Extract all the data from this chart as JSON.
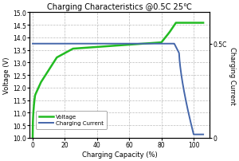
{
  "title": "Charging Characteristics @0.5C 25℃",
  "xlabel": "Charging Capacity (%)",
  "ylabel_left": "Voltage (V)",
  "ylabel_right": "Charging Current",
  "xlim": [
    -2,
    110
  ],
  "ylim_left": [
    10.0,
    15.0
  ],
  "ylim_right": [
    0,
    0.6667
  ],
  "xticks": [
    0,
    20,
    40,
    60,
    80,
    100
  ],
  "yticks_left": [
    10.0,
    10.5,
    11.0,
    11.5,
    12.0,
    12.5,
    13.0,
    13.5,
    14.0,
    14.5,
    15.0
  ],
  "right_ytick_pos": [
    0.5
  ],
  "right_ytick_labels": [
    "0.5C"
  ],
  "right_ytick_0_pos": 0.0,
  "right_ytick_0_label": "0",
  "voltage_color": "#22bb22",
  "current_color": "#4466aa",
  "grid_color": "#bbbbbb",
  "bg_color": "#ffffff",
  "legend_voltage": "Voltage",
  "legend_current": "Charging Current"
}
